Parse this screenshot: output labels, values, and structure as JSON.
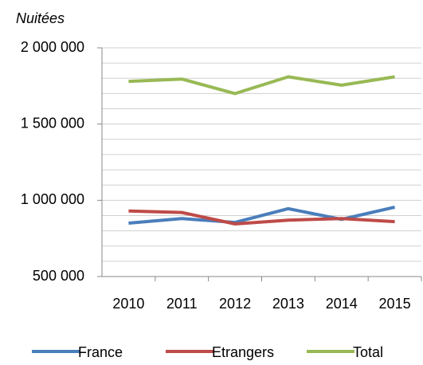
{
  "chart_data": {
    "type": "line",
    "ylabel": "Nuitées",
    "categories": [
      "2010",
      "2011",
      "2012",
      "2013",
      "2014",
      "2015"
    ],
    "series": [
      {
        "name": "France",
        "color": "#4a7ebb",
        "values": [
          850000,
          880000,
          855000,
          945000,
          875000,
          955000
        ]
      },
      {
        "name": "Etrangers",
        "color": "#be4b48",
        "values": [
          930000,
          920000,
          845000,
          870000,
          880000,
          860000
        ]
      },
      {
        "name": "Total",
        "color": "#98b954",
        "values": [
          1780000,
          1795000,
          1700000,
          1810000,
          1755000,
          1810000
        ]
      }
    ],
    "ylim": [
      500000,
      2000000
    ],
    "yticks": [
      {
        "value": 500000,
        "label": "500 000"
      },
      {
        "value": 1000000,
        "label": "1 000 000"
      },
      {
        "value": 1500000,
        "label": "1 500 000"
      },
      {
        "value": 2000000,
        "label": "2 000 000"
      }
    ],
    "ygrid": [
      600000,
      700000,
      800000,
      900000,
      1000000,
      1100000,
      1200000,
      1300000,
      1400000,
      1500000,
      1600000,
      1700000,
      1800000,
      1900000,
      2000000
    ],
    "grid": true,
    "legend": "bottom"
  }
}
